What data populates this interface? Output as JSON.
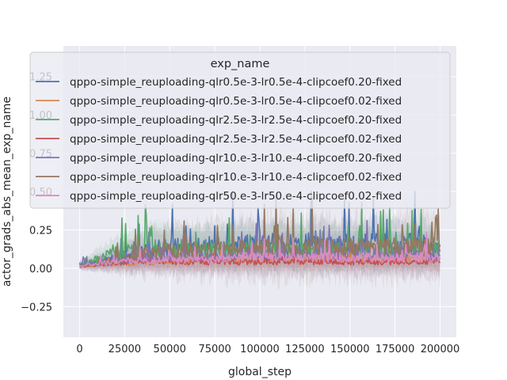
{
  "chart_data": {
    "type": "line",
    "title": "",
    "xlabel": "global_step",
    "ylabel": "actor_grads_abs_mean_exp_name",
    "xlim": [
      -9000,
      209000
    ],
    "ylim": [
      -0.45,
      1.45
    ],
    "xticks": [
      0,
      25000,
      50000,
      75000,
      100000,
      125000,
      150000,
      175000,
      200000
    ],
    "xtick_labels": [
      "0",
      "25000",
      "50000",
      "75000",
      "100000",
      "125000",
      "150000",
      "175000",
      "200000"
    ],
    "yticks": [
      -0.25,
      0.0,
      0.25,
      0.5,
      0.75,
      1.0,
      1.25
    ],
    "ytick_labels": [
      "−0.25",
      "0.00",
      "0.25",
      "0.50",
      "0.75",
      "1.00",
      "1.25"
    ],
    "grid": true,
    "legend": {
      "title": "exp_name",
      "placement": "upper-center"
    },
    "series": [
      {
        "name": "qppo-simple_reuploading-qlr0.5e-3-lr0.5e-4-clipcoef0.20-fixed",
        "color": "#4c72b0",
        "x": [
          0,
          10000,
          20000,
          30000,
          40000,
          50000,
          60000,
          70000,
          80000,
          90000,
          100000,
          110000,
          120000,
          130000,
          140000,
          150000,
          160000,
          170000,
          180000,
          190000,
          200000
        ],
        "y": [
          0.02,
          0.04,
          0.07,
          0.1,
          0.12,
          0.14,
          0.13,
          0.15,
          0.14,
          0.16,
          0.15,
          0.16,
          0.15,
          0.17,
          0.16,
          0.15,
          0.16,
          0.17,
          0.16,
          0.17,
          0.1
        ]
      },
      {
        "name": "qppo-simple_reuploading-qlr0.5e-3-lr0.5e-4-clipcoef0.02-fixed",
        "color": "#dd8452",
        "x": [
          0,
          10000,
          20000,
          30000,
          40000,
          50000,
          60000,
          70000,
          80000,
          90000,
          100000,
          110000,
          120000,
          130000,
          140000,
          150000,
          160000,
          170000,
          180000,
          190000,
          200000
        ],
        "y": [
          0.01,
          0.02,
          0.03,
          0.03,
          0.04,
          0.04,
          0.04,
          0.05,
          0.05,
          0.05,
          0.05,
          0.06,
          0.05,
          0.06,
          0.06,
          0.06,
          0.06,
          0.06,
          0.06,
          0.06,
          0.06
        ]
      },
      {
        "name": "qppo-simple_reuploading-qlr2.5e-3-lr2.5e-4-clipcoef0.20-fixed",
        "color": "#55a868",
        "x": [
          0,
          10000,
          20000,
          30000,
          40000,
          50000,
          60000,
          70000,
          80000,
          90000,
          100000,
          110000,
          120000,
          130000,
          140000,
          150000,
          160000,
          170000,
          180000,
          190000,
          200000
        ],
        "y": [
          0.02,
          0.06,
          0.1,
          0.12,
          0.13,
          0.13,
          0.12,
          0.13,
          0.12,
          0.13,
          0.12,
          0.13,
          0.12,
          0.12,
          0.13,
          0.12,
          0.12,
          0.12,
          0.12,
          0.12,
          0.12
        ]
      },
      {
        "name": "qppo-simple_reuploading-qlr2.5e-3-lr2.5e-4-clipcoef0.02-fixed",
        "color": "#c44e52",
        "x": [
          0,
          10000,
          20000,
          30000,
          40000,
          50000,
          60000,
          70000,
          80000,
          90000,
          100000,
          110000,
          120000,
          130000,
          140000,
          150000,
          160000,
          170000,
          180000,
          190000,
          200000
        ],
        "y": [
          0.01,
          0.02,
          0.03,
          0.04,
          0.04,
          0.04,
          0.04,
          0.04,
          0.04,
          0.04,
          0.04,
          0.04,
          0.04,
          0.04,
          0.04,
          0.04,
          0.04,
          0.04,
          0.04,
          0.04,
          0.04
        ]
      },
      {
        "name": "qppo-simple_reuploading-qlr10.e-3-lr10.e-4-clipcoef0.20-fixed",
        "color": "#8172b3",
        "x": [
          0,
          10000,
          20000,
          30000,
          40000,
          50000,
          60000,
          70000,
          80000,
          90000,
          100000,
          110000,
          120000,
          130000,
          140000,
          150000,
          160000,
          170000,
          180000,
          190000,
          200000
        ],
        "y": [
          0.02,
          0.04,
          0.05,
          0.06,
          0.07,
          0.07,
          0.08,
          0.08,
          0.08,
          0.09,
          0.09,
          0.09,
          0.09,
          0.09,
          0.09,
          0.1,
          0.1,
          0.1,
          0.1,
          0.1,
          0.09
        ]
      },
      {
        "name": "qppo-simple_reuploading-qlr10.e-3-lr10.e-4-clipcoef0.02-fixed",
        "color": "#937860",
        "x": [
          0,
          10000,
          20000,
          30000,
          40000,
          50000,
          60000,
          70000,
          80000,
          90000,
          100000,
          110000,
          120000,
          130000,
          140000,
          150000,
          160000,
          170000,
          180000,
          190000,
          200000
        ],
        "y": [
          0.01,
          0.03,
          0.05,
          0.08,
          0.1,
          0.11,
          0.12,
          0.12,
          0.13,
          0.13,
          0.13,
          0.14,
          0.13,
          0.14,
          0.13,
          0.14,
          0.13,
          0.14,
          0.15,
          0.14,
          0.13
        ]
      },
      {
        "name": "qppo-simple_reuploading-qlr50.e-3-lr50.e-4-clipcoef0.02-fixed",
        "color": "#da8bc3",
        "x": [
          0,
          10000,
          20000,
          30000,
          40000,
          50000,
          60000,
          70000,
          80000,
          90000,
          100000,
          110000,
          120000,
          130000,
          140000,
          150000,
          160000,
          170000,
          180000,
          190000,
          200000
        ],
        "y": [
          0.02,
          0.03,
          0.04,
          0.05,
          0.05,
          0.06,
          0.06,
          0.06,
          0.06,
          0.07,
          0.07,
          0.07,
          0.07,
          0.07,
          0.07,
          0.07,
          0.07,
          0.07,
          0.07,
          0.07,
          0.07
        ]
      }
    ]
  }
}
